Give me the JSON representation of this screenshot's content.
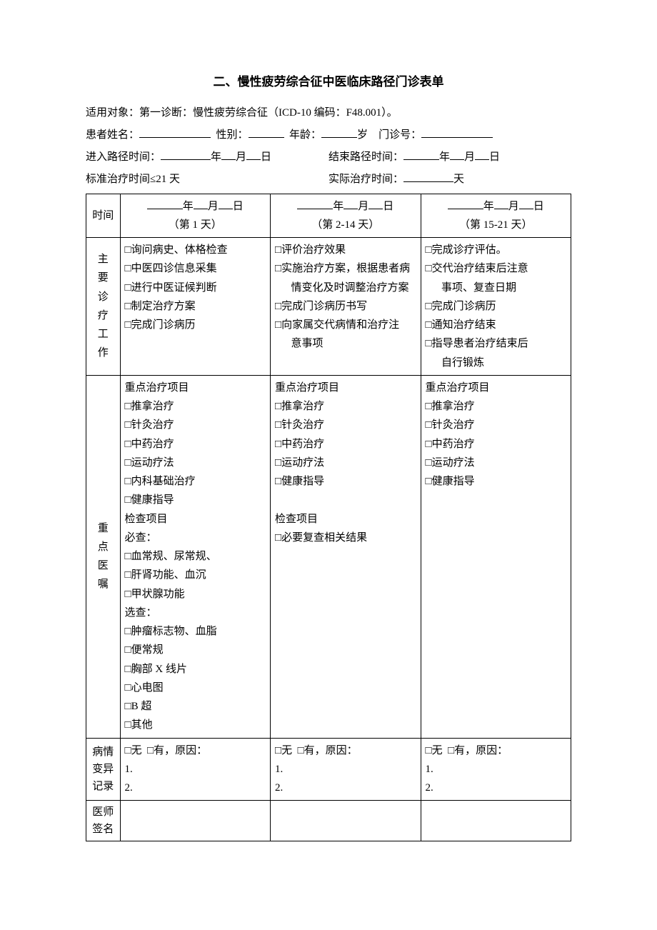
{
  "title": "二、慢性疲劳综合征中医临床路径门诊表单",
  "intro": "适用对象：第一诊断：慢性疲劳综合征（ICD-10 编码：F48.001）。",
  "labels": {
    "name": "患者姓名：",
    "sex": "性别：",
    "age": "年龄：",
    "age_unit": "岁",
    "opid": "门诊号：",
    "enter_time": "进入路径时间：",
    "end_time": "结束路径时间：",
    "date_ymd_y": "年",
    "date_ymd_m": "月",
    "date_ymd_d": "日",
    "std_time": "标准治疗时间≤21 天",
    "real_time": "实际治疗时间：",
    "real_time_unit": "天"
  },
  "thead": {
    "time": "时间",
    "col1_sub": "（第 1 天）",
    "col2_sub": "（第 2-14 天）",
    "col3_sub": "（第 15-21 天）"
  },
  "rows": {
    "work": {
      "h": "主要诊疗工作"
    },
    "order": {
      "h": "重点医嘱"
    },
    "variance": {
      "h": "病情变异记录"
    },
    "sign": {
      "h": "医师签名"
    }
  },
  "work_c1": [
    "□询问病史、体格检查",
    "□中医四诊信息采集",
    "□进行中医证候判断",
    "□制定治疗方案",
    "□完成门诊病历"
  ],
  "work_c2": [
    "□评价治疗效果",
    "□实施治疗方案，根据患者病",
    "　情变化及时调整治疗方案",
    "□完成门诊病历书写",
    "□向家属交代病情和治疗注",
    "　意事项"
  ],
  "work_c3": [
    "□完成诊疗评估。",
    "□交代治疗结束后注意",
    "　事项、复查日期",
    "□完成门诊病历",
    "□通知治疗结束",
    "□指导患者治疗结束后",
    "　自行锻炼"
  ],
  "order_c1": [
    "重点治疗项目",
    "□推拿治疗",
    "□针灸治疗",
    "□中药治疗",
    "□运动疗法",
    "□内科基础治疗",
    "□健康指导",
    "检查项目",
    "必查：",
    "□血常规、尿常规、",
    "□肝肾功能、血沉",
    "□甲状腺功能",
    "选查：",
    "□肿瘤标志物、血脂",
    "□便常规",
    "□胸部 X 线片",
    "□心电图",
    "□B 超",
    "□其他"
  ],
  "order_c2": [
    "重点治疗项目",
    "□推拿治疗",
    "□针灸治疗",
    "□中药治疗",
    "□运动疗法",
    "□健康指导",
    "",
    "检查项目",
    "□必要复查相关结果"
  ],
  "order_c3": [
    "重点治疗项目",
    "□推拿治疗",
    "□针灸治疗",
    "□中药治疗",
    "□运动疗法",
    "□健康指导"
  ],
  "variance_c": {
    "none": "□无",
    "has": "□有，原因：",
    "n1": "1.",
    "n2": "2."
  }
}
